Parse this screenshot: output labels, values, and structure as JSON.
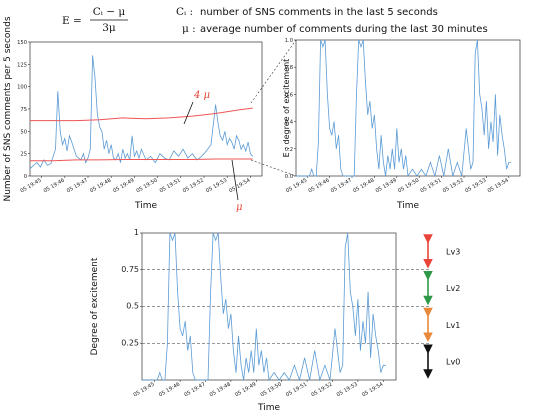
{
  "header": {
    "formula_lhs": "E =",
    "formula_num": "Cᵢ − μ",
    "formula_den": "3μ",
    "ci_symbol": "Cᵢ :",
    "ci_desc": "number of SNS comments in the last 5 seconds",
    "mu_symbol": "μ :",
    "mu_desc": "average number of comments during the last 30 minutes"
  },
  "colors": {
    "series": "#5b9bd5",
    "threshold": "#ee5555",
    "arrow_red": "#e8443a",
    "arrow_green": "#2e9a47",
    "arrow_orange": "#e8883a",
    "arrow_black": "#111111"
  },
  "chart_data": [
    {
      "id": "comments",
      "type": "line",
      "xlabel": "Time",
      "ylabel": "Number of SNS comments per 5 seconds",
      "ylim": [
        0,
        150
      ],
      "yticks": [
        0,
        25,
        50,
        75,
        100,
        125,
        150
      ],
      "xlim": [
        0,
        10
      ],
      "xticks": [
        0,
        1,
        2,
        3,
        4,
        5,
        6,
        7,
        8,
        9
      ],
      "xtick_labels": [
        "05 19:45",
        "05 19:46",
        "05 19:47",
        "05 19:48",
        "05 19:49",
        "05 19:50",
        "05 19:51",
        "05 19:52",
        "05 19:53",
        "05 19:54"
      ],
      "series": [
        {
          "name": "",
          "x": [
            0.0,
            0.15,
            0.3,
            0.45,
            0.6,
            0.75,
            0.9,
            1.0,
            1.1,
            1.2,
            1.3,
            1.4,
            1.5,
            1.6,
            1.7,
            1.8,
            1.9,
            2.0,
            2.1,
            2.2,
            2.3,
            2.4,
            2.5,
            2.6,
            2.7,
            2.8,
            2.9,
            3.0,
            3.1,
            3.2,
            3.3,
            3.4,
            3.5,
            3.6,
            3.7,
            3.8,
            3.9,
            4.0,
            4.1,
            4.2,
            4.3,
            4.4,
            4.5,
            4.6,
            4.7,
            4.8,
            4.9,
            5.0,
            5.2,
            5.4,
            5.6,
            5.8,
            6.0,
            6.2,
            6.4,
            6.6,
            6.8,
            7.0,
            7.2,
            7.4,
            7.6,
            7.8,
            8.0,
            8.1,
            8.2,
            8.3,
            8.4,
            8.5,
            8.6,
            8.7,
            8.8,
            8.9,
            9.0,
            9.1,
            9.2,
            9.3,
            9.4,
            9.5,
            9.6
          ],
          "values": [
            8,
            12,
            15,
            10,
            18,
            12,
            14,
            22,
            30,
            95,
            50,
            35,
            42,
            28,
            45,
            38,
            30,
            22,
            20,
            18,
            25,
            15,
            20,
            30,
            135,
            110,
            70,
            55,
            50,
            30,
            40,
            25,
            35,
            20,
            18,
            25,
            15,
            30,
            20,
            25,
            18,
            45,
            22,
            28,
            20,
            30,
            24,
            18,
            22,
            15,
            25,
            20,
            18,
            28,
            22,
            30,
            20,
            25,
            18,
            22,
            28,
            35,
            80,
            60,
            45,
            40,
            50,
            35,
            42,
            38,
            30,
            45,
            40,
            30,
            35,
            28,
            38,
            25,
            22
          ]
        },
        {
          "name": "4 μ",
          "x": [
            0,
            1,
            2,
            3,
            4,
            5,
            6,
            7,
            8,
            9,
            9.6
          ],
          "values": [
            62,
            62,
            62,
            63,
            65,
            64,
            65,
            67,
            70,
            74,
            76
          ]
        },
        {
          "name": "μ",
          "x": [
            0,
            1,
            2,
            3,
            4,
            5,
            6,
            7,
            8,
            9,
            9.6
          ],
          "values": [
            17,
            17,
            18,
            18,
            18.5,
            18.5,
            18.5,
            18.5,
            19,
            19,
            19
          ]
        }
      ]
    },
    {
      "id": "excitement-top",
      "type": "line",
      "xlabel": "Time",
      "ylabel": "E : degree of excitement",
      "ylim": [
        0,
        1
      ],
      "yticks": [
        0,
        0.2,
        0.4,
        0.6,
        0.8,
        1.0
      ],
      "ytick_labels": [
        "0.0",
        "0.2",
        "0.4",
        "0.6",
        "0.8",
        "1.0"
      ],
      "xlim": [
        0,
        10
      ],
      "xticks": [
        0,
        1,
        2,
        3,
        4,
        5,
        6,
        7,
        8,
        9
      ],
      "xtick_labels": [
        "05 19:45",
        "05 19:46",
        "05 19:47",
        "05 19:48",
        "05 19:49",
        "05 19:50",
        "05 19:51",
        "05 19:52",
        "05 19:53",
        "05 19:54"
      ],
      "series": [
        {
          "name": "",
          "x": [
            0.0,
            0.3,
            0.6,
            0.7,
            0.8,
            0.9,
            1.0,
            1.1,
            1.2,
            1.3,
            1.4,
            1.5,
            1.6,
            1.7,
            1.8,
            1.9,
            2.0,
            2.1,
            2.2,
            2.4,
            2.6,
            2.7,
            2.8,
            2.9,
            3.0,
            3.1,
            3.2,
            3.3,
            3.4,
            3.5,
            3.6,
            3.7,
            3.8,
            3.9,
            4.0,
            4.1,
            4.2,
            4.3,
            4.4,
            4.5,
            4.6,
            4.7,
            4.8,
            4.9,
            5.0,
            5.2,
            5.4,
            5.6,
            5.8,
            6.0,
            6.2,
            6.4,
            6.6,
            6.8,
            7.0,
            7.2,
            7.4,
            7.6,
            7.8,
            7.9,
            8.0,
            8.1,
            8.2,
            8.3,
            8.4,
            8.5,
            8.6,
            8.7,
            8.8,
            8.9,
            9.0,
            9.1,
            9.2,
            9.3,
            9.4,
            9.5,
            9.6
          ],
          "values": [
            0,
            0,
            0,
            0.05,
            0,
            0,
            0.25,
            1.0,
            0.95,
            1.0,
            0.6,
            0.35,
            0.3,
            0.4,
            0.2,
            0.3,
            0.05,
            0,
            0,
            0,
            0,
            0.6,
            1.0,
            0.95,
            1.0,
            0.7,
            0.45,
            0.55,
            0.35,
            0.45,
            0.2,
            0.05,
            0.3,
            0.1,
            0,
            0.15,
            0.05,
            0.2,
            0.05,
            0.35,
            0.1,
            0.2,
            0.05,
            0.15,
            0,
            0.05,
            0,
            0.05,
            0,
            0.1,
            0,
            0.15,
            0,
            0.2,
            0,
            0.1,
            0,
            0.35,
            0.05,
            0.1,
            0.9,
            1.0,
            0.6,
            0.5,
            0.3,
            0.55,
            0.2,
            0.4,
            0.25,
            0.6,
            0.15,
            0.45,
            0.3,
            0.2,
            0.05,
            0.1,
            0.1
          ]
        }
      ]
    },
    {
      "id": "excitement-levels",
      "type": "line",
      "xlabel": "Time",
      "ylabel": "Degree of excitement",
      "ylim": [
        0,
        1
      ],
      "yticks": [
        0.25,
        0.5,
        0.75,
        1.0
      ],
      "ytick_labels": [
        "0.25",
        "0.5",
        "0.75",
        "1"
      ],
      "xlim": [
        0,
        10
      ],
      "xticks": [
        0,
        1,
        2,
        3,
        4,
        5,
        6,
        7,
        8,
        9
      ],
      "xtick_labels": [
        "05 19:45",
        "05 19:46",
        "05 19:47",
        "05 19:48",
        "05 19:49",
        "05 19:50",
        "05 19:51",
        "05 19:52",
        "05 19:53",
        "05 19:54"
      ],
      "thresholds": [
        0.25,
        0.5,
        0.75
      ],
      "levels": [
        {
          "label": "Lv3",
          "from": 0.75,
          "to": 1.0,
          "color": "#e8443a"
        },
        {
          "label": "Lv2",
          "from": 0.5,
          "to": 0.75,
          "color": "#2e9a47"
        },
        {
          "label": "Lv1",
          "from": 0.25,
          "to": 0.5,
          "color": "#e8883a"
        },
        {
          "label": "Lv0",
          "from": 0.0,
          "to": 0.25,
          "color": "#111111"
        }
      ],
      "series": [
        {
          "name": "",
          "x": [
            0.0,
            0.3,
            0.6,
            0.7,
            0.8,
            0.9,
            1.0,
            1.1,
            1.2,
            1.3,
            1.4,
            1.5,
            1.6,
            1.7,
            1.8,
            1.9,
            2.0,
            2.1,
            2.2,
            2.4,
            2.6,
            2.7,
            2.8,
            2.9,
            3.0,
            3.1,
            3.2,
            3.3,
            3.4,
            3.5,
            3.6,
            3.7,
            3.8,
            3.9,
            4.0,
            4.1,
            4.2,
            4.3,
            4.4,
            4.5,
            4.6,
            4.7,
            4.8,
            4.9,
            5.0,
            5.2,
            5.4,
            5.6,
            5.8,
            6.0,
            6.2,
            6.4,
            6.6,
            6.8,
            7.0,
            7.2,
            7.4,
            7.6,
            7.8,
            7.9,
            8.0,
            8.1,
            8.2,
            8.3,
            8.4,
            8.5,
            8.6,
            8.7,
            8.8,
            8.9,
            9.0,
            9.1,
            9.2,
            9.3,
            9.4,
            9.5,
            9.6
          ],
          "values": [
            0,
            0,
            0,
            0.05,
            0,
            0,
            0.25,
            1.0,
            0.95,
            1.0,
            0.6,
            0.35,
            0.3,
            0.4,
            0.2,
            0.3,
            0.05,
            0,
            0,
            0,
            0,
            0.6,
            1.0,
            0.95,
            1.0,
            0.7,
            0.45,
            0.55,
            0.35,
            0.45,
            0.2,
            0.05,
            0.3,
            0.1,
            0,
            0.15,
            0.05,
            0.2,
            0.05,
            0.35,
            0.1,
            0.2,
            0.05,
            0.15,
            0,
            0.05,
            0,
            0.05,
            0,
            0.1,
            0,
            0.15,
            0,
            0.2,
            0,
            0.1,
            0,
            0.35,
            0.05,
            0.1,
            0.9,
            1.0,
            0.6,
            0.5,
            0.3,
            0.55,
            0.2,
            0.4,
            0.25,
            0.6,
            0.15,
            0.45,
            0.3,
            0.2,
            0.05,
            0.1,
            0.1
          ]
        }
      ]
    }
  ]
}
